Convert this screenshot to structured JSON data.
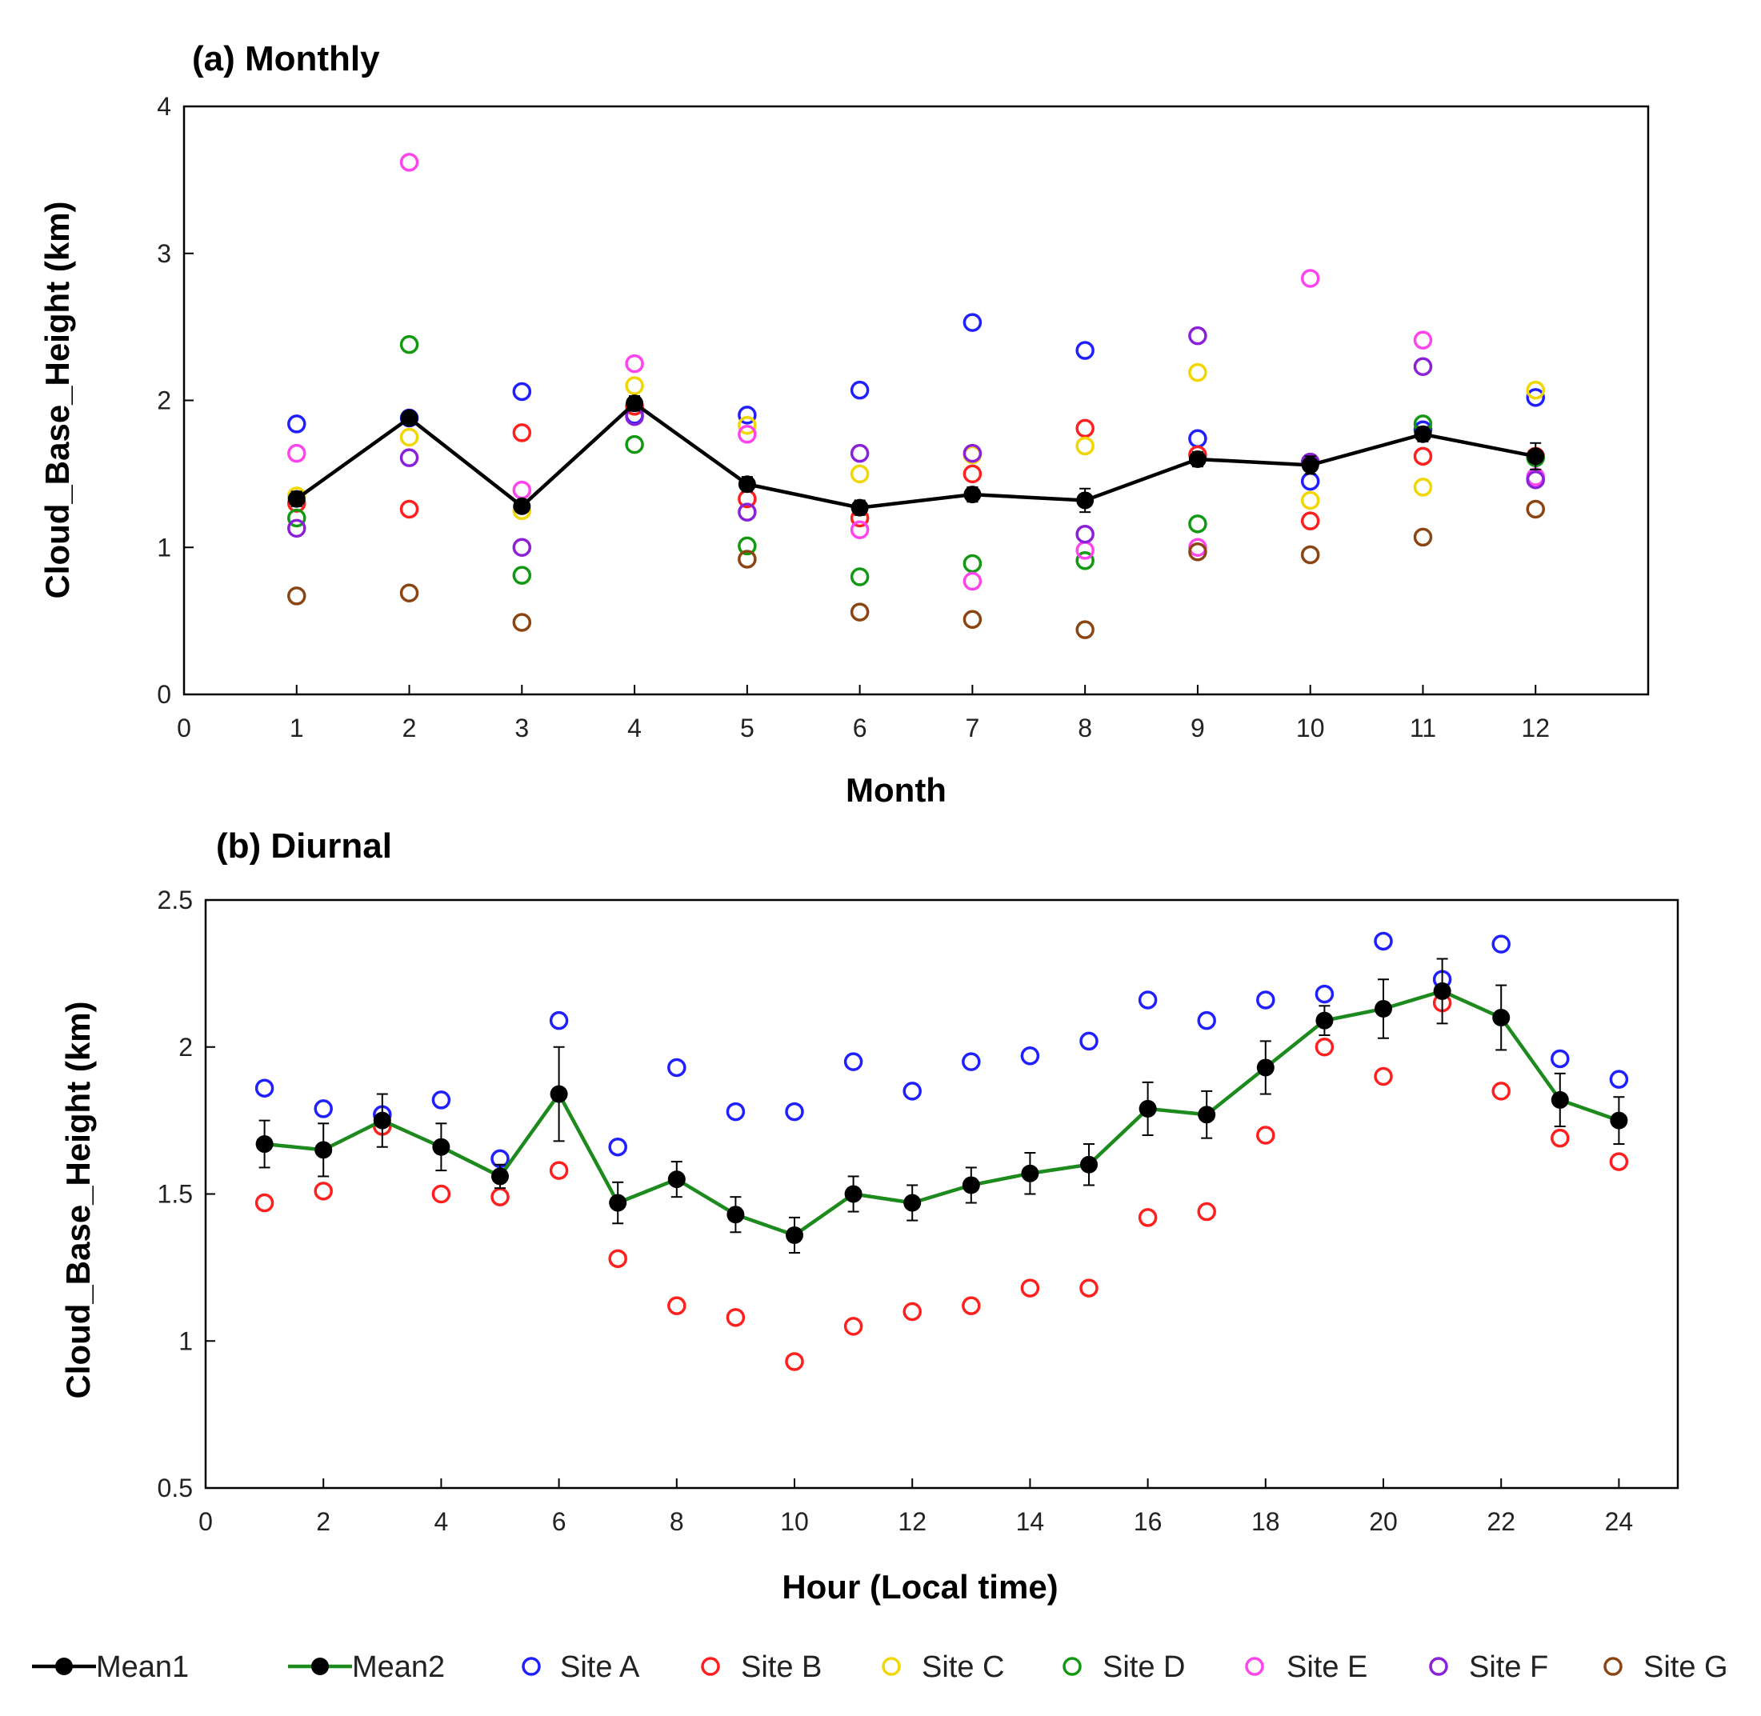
{
  "colors": {
    "mean1": "#000000",
    "mean2": "#1c8a1c",
    "site_a": "#1f1fff",
    "site_b": "#ff1f1f",
    "site_c": "#f2d600",
    "site_d": "#119911",
    "site_e": "#ff44ee",
    "site_f": "#8a20d8",
    "site_g": "#8b4513"
  },
  "chart_data": [
    {
      "type": "scatter",
      "title": "(a) Monthly",
      "xlabel": "Month",
      "ylabel": "Cloud_Base_Height (km)",
      "xlim": [
        0,
        13
      ],
      "ylim": [
        0,
        4
      ],
      "xticks": [
        0,
        1,
        2,
        3,
        4,
        5,
        6,
        7,
        8,
        9,
        10,
        11,
        12
      ],
      "yticks": [
        0,
        1,
        2,
        3,
        4
      ],
      "x": [
        1,
        2,
        3,
        4,
        5,
        6,
        7,
        8,
        9,
        10,
        11,
        12
      ],
      "series": [
        {
          "name": "Mean1",
          "kind": "line",
          "values": [
            1.33,
            1.88,
            1.28,
            1.98,
            1.43,
            1.27,
            1.36,
            1.32,
            1.6,
            1.56,
            1.77,
            1.62
          ],
          "error": [
            0.05,
            0.04,
            0.04,
            0.05,
            0.05,
            0.05,
            0.05,
            0.08,
            0.05,
            0.06,
            0.05,
            0.09
          ]
        },
        {
          "name": "Site A",
          "values": [
            1.84,
            1.88,
            2.06,
            1.9,
            1.9,
            2.07,
            2.53,
            2.34,
            1.74,
            1.45,
            1.8,
            2.02
          ]
        },
        {
          "name": "Site B",
          "values": [
            1.3,
            1.26,
            1.78,
            1.96,
            1.33,
            1.2,
            1.5,
            1.81,
            1.63,
            1.18,
            1.62,
            1.62
          ]
        },
        {
          "name": "Site C",
          "values": [
            1.35,
            1.75,
            1.25,
            2.1,
            1.83,
            1.5,
            1.63,
            1.69,
            2.19,
            1.32,
            1.41,
            2.07
          ]
        },
        {
          "name": "Site D",
          "values": [
            1.2,
            2.38,
            0.81,
            1.7,
            1.01,
            0.8,
            0.89,
            0.91,
            1.16,
            1.58,
            1.84,
            1.61
          ]
        },
        {
          "name": "Site E",
          "values": [
            1.64,
            3.62,
            1.39,
            2.25,
            1.77,
            1.12,
            0.77,
            0.98,
            1.0,
            2.83,
            2.41,
            1.48
          ]
        },
        {
          "name": "Site F",
          "values": [
            1.13,
            1.61,
            1.0,
            1.89,
            1.24,
            1.64,
            1.64,
            1.09,
            2.44,
            1.58,
            2.23,
            1.46
          ]
        },
        {
          "name": "Site G",
          "values": [
            0.67,
            0.69,
            0.49,
            null,
            0.92,
            0.56,
            0.51,
            0.44,
            0.97,
            0.95,
            1.07,
            1.26
          ]
        }
      ]
    },
    {
      "type": "scatter",
      "title": "(b) Diurnal",
      "xlabel": "Hour (Local time)",
      "ylabel": "Cloud_Base_Height (km)",
      "xlim": [
        0,
        25
      ],
      "ylim": [
        0.5,
        2.5
      ],
      "xticks": [
        0,
        2,
        4,
        6,
        8,
        10,
        12,
        14,
        16,
        18,
        20,
        22,
        24
      ],
      "yticks": [
        0.5,
        1,
        1.5,
        2,
        2.5
      ],
      "x": [
        1,
        2,
        3,
        4,
        5,
        6,
        7,
        8,
        9,
        10,
        11,
        12,
        13,
        14,
        15,
        16,
        17,
        18,
        19,
        20,
        21,
        22,
        23,
        24
      ],
      "series": [
        {
          "name": "Mean2",
          "kind": "line",
          "values": [
            1.67,
            1.65,
            1.75,
            1.66,
            1.56,
            1.84,
            1.47,
            1.55,
            1.43,
            1.36,
            1.5,
            1.47,
            1.53,
            1.57,
            1.6,
            1.79,
            1.77,
            1.93,
            2.09,
            2.13,
            2.19,
            2.1,
            1.82,
            1.75
          ],
          "error": [
            0.08,
            0.09,
            0.09,
            0.08,
            0.04,
            0.16,
            0.07,
            0.06,
            0.06,
            0.06,
            0.06,
            0.06,
            0.06,
            0.07,
            0.07,
            0.09,
            0.08,
            0.09,
            0.05,
            0.1,
            0.11,
            0.11,
            0.09,
            0.08
          ]
        },
        {
          "name": "Site A",
          "values": [
            1.86,
            1.79,
            1.77,
            1.82,
            1.62,
            2.09,
            1.66,
            1.93,
            1.78,
            1.78,
            1.95,
            1.85,
            1.95,
            1.97,
            2.02,
            2.16,
            2.09,
            2.16,
            2.18,
            2.36,
            2.23,
            2.35,
            1.96,
            1.89
          ]
        },
        {
          "name": "Site B",
          "values": [
            1.47,
            1.51,
            1.73,
            1.5,
            1.49,
            1.58,
            1.28,
            1.12,
            1.08,
            0.93,
            1.05,
            1.1,
            1.12,
            1.18,
            1.18,
            1.42,
            1.44,
            1.7,
            2.0,
            1.9,
            2.15,
            1.85,
            1.69,
            1.61
          ]
        }
      ]
    }
  ],
  "legend": {
    "placement": "bottom",
    "items": [
      {
        "label": "Mean1",
        "kind": "line"
      },
      {
        "label": "Mean2",
        "kind": "line"
      },
      {
        "label": "Site A",
        "kind": "marker"
      },
      {
        "label": "Site B",
        "kind": "marker"
      },
      {
        "label": "Site C",
        "kind": "marker"
      },
      {
        "label": "Site D",
        "kind": "marker"
      },
      {
        "label": "Site E",
        "kind": "marker"
      },
      {
        "label": "Site F",
        "kind": "marker"
      },
      {
        "label": "Site G",
        "kind": "marker"
      }
    ]
  }
}
